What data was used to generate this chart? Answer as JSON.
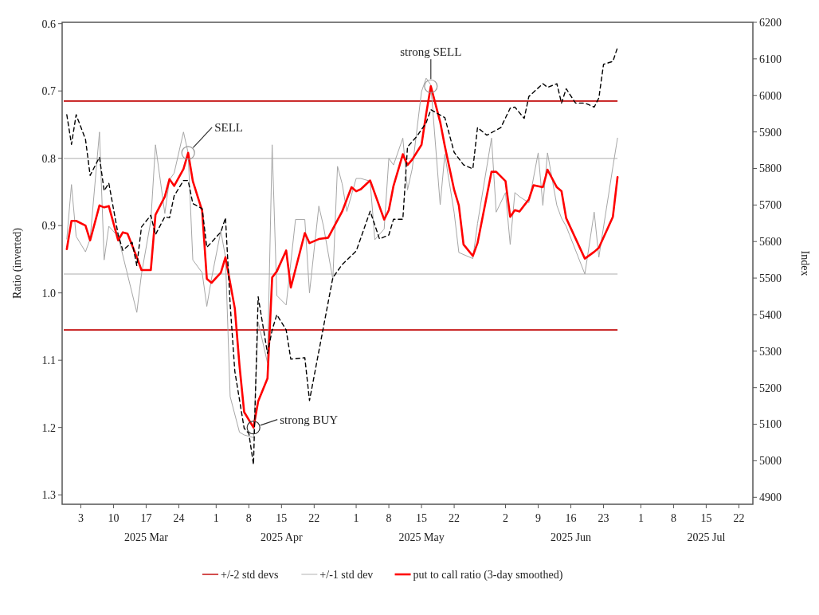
{
  "chart_data": {
    "type": "line",
    "ylabel": "Ratio (inverted)",
    "y2label": "Index",
    "xlim": [
      "2025-02-27",
      "2025-07-25"
    ],
    "xticks": [
      {
        "value": "2025-03-03",
        "label": "3"
      },
      {
        "value": "2025-03-10",
        "label": "10"
      },
      {
        "value": "2025-03-17",
        "label": "17\n2025 Mar"
      },
      {
        "value": "2025-03-24",
        "label": "24"
      },
      {
        "value": "2025-04-01",
        "label": "1"
      },
      {
        "value": "2025-04-08",
        "label": "8"
      },
      {
        "value": "2025-04-15",
        "label": "15\n2025 Apr"
      },
      {
        "value": "2025-04-22",
        "label": "22"
      },
      {
        "value": "2025-05-01",
        "label": "1"
      },
      {
        "value": "2025-05-08",
        "label": "8"
      },
      {
        "value": "2025-05-15",
        "label": "15\n2025 May"
      },
      {
        "value": "2025-05-22",
        "label": "22"
      },
      {
        "value": "2025-06-02",
        "label": "2"
      },
      {
        "value": "2025-06-09",
        "label": "9"
      },
      {
        "value": "2025-06-16",
        "label": "16\n2025 Jun"
      },
      {
        "value": "2025-06-23",
        "label": "23"
      },
      {
        "value": "2025-07-01",
        "label": "1"
      },
      {
        "value": "2025-07-08",
        "label": "8"
      },
      {
        "value": "2025-07-15",
        "label": "15\n2025 Jul"
      },
      {
        "value": "2025-07-22",
        "label": "22"
      }
    ],
    "ylim": [
      1.314,
      0.598
    ],
    "yticks": [
      0.6,
      0.7,
      0.8,
      0.9,
      {
        "value": 1,
        "label": "1.0"
      },
      1.1,
      1.2,
      1.3
    ],
    "y2lim": [
      4881,
      6200
    ],
    "y2ticks": [
      4900,
      5000,
      5100,
      5200,
      5300,
      5400,
      5500,
      5600,
      5700,
      5800,
      5900,
      6000,
      6100,
      6200
    ],
    "legend": "bottom",
    "annotations": [
      {
        "text": "SELL",
        "x": "2025-03-26",
        "y": 0.792
      },
      {
        "text": "strong BUY",
        "x": "2025-04-09",
        "y": 1.2
      },
      {
        "text": "strong SELL",
        "x": "2025-05-17",
        "y": 0.693
      }
    ],
    "ref_lines": [
      {
        "axis": "y",
        "value": 0.715,
        "label": "+/-2 std devs",
        "color": "#c00000"
      },
      {
        "axis": "y",
        "value": 1.055,
        "label": null,
        "color": "#c00000"
      },
      {
        "axis": "y",
        "value": 0.8,
        "label": "+/-1 std dev",
        "color": "#c8c8c8"
      },
      {
        "axis": "y",
        "value": 0.972,
        "label": null,
        "color": "#c8c8c8"
      }
    ],
    "series": [
      {
        "color": "#a6a6a6",
        "x": [
          "2025-02-28",
          "2025-03-01",
          "2025-03-02",
          "2025-03-04",
          "2025-03-05",
          "2025-03-07",
          "2025-03-08",
          "2025-03-09",
          "2025-03-11",
          "2025-03-15",
          "2025-03-16",
          "2025-03-18",
          "2025-03-19",
          "2025-03-21",
          "2025-03-22",
          "2025-03-23",
          "2025-03-25",
          "2025-03-26",
          "2025-03-27",
          "2025-03-29",
          "2025-03-30",
          "2025-03-31",
          "2025-04-02",
          "2025-04-03",
          "2025-04-04",
          "2025-04-06",
          "2025-04-07",
          "2025-04-09",
          "2025-04-10",
          "2025-04-12",
          "2025-04-13",
          "2025-04-14",
          "2025-04-16",
          "2025-04-18",
          "2025-04-20",
          "2025-04-21",
          "2025-04-23",
          "2025-04-24",
          "2025-04-26",
          "2025-04-27",
          "2025-04-28",
          "2025-04-29",
          "2025-05-01",
          "2025-05-02",
          "2025-05-04",
          "2025-05-05",
          "2025-05-07",
          "2025-05-08",
          "2025-05-09",
          "2025-05-11",
          "2025-05-12",
          "2025-05-13",
          "2025-05-15",
          "2025-05-16",
          "2025-05-17",
          "2025-05-19",
          "2025-05-20",
          "2025-05-22",
          "2025-05-23",
          "2025-05-26",
          "2025-05-27",
          "2025-05-30",
          "2025-05-31",
          "2025-06-02",
          "2025-06-03",
          "2025-06-04",
          "2025-06-05",
          "2025-06-07",
          "2025-06-09",
          "2025-06-10",
          "2025-06-11",
          "2025-06-13",
          "2025-06-14",
          "2025-06-15",
          "2025-06-19",
          "2025-06-21",
          "2025-06-22",
          "2025-06-25",
          "2025-06-26"
        ],
        "values": [
          0.92,
          0.839,
          0.916,
          0.939,
          0.92,
          0.761,
          0.951,
          0.901,
          0.916,
          1.029,
          0.972,
          0.893,
          0.78,
          0.882,
          0.832,
          0.822,
          0.761,
          0.792,
          0.951,
          0.97,
          1.02,
          0.979,
          0.908,
          0.947,
          1.154,
          1.207,
          1.211,
          1.215,
          1.043,
          1.104,
          0.78,
          1.004,
          1.018,
          0.891,
          0.891,
          1.0,
          0.871,
          0.901,
          0.98,
          0.812,
          0.838,
          0.879,
          0.83,
          0.83,
          0.834,
          0.921,
          0.905,
          0.8,
          0.81,
          0.77,
          0.847,
          0.816,
          0.701,
          0.681,
          0.691,
          0.869,
          0.794,
          0.881,
          0.94,
          0.949,
          0.897,
          0.77,
          0.88,
          0.851,
          0.928,
          0.851,
          0.857,
          0.866,
          0.792,
          0.87,
          0.792,
          0.87,
          0.889,
          0.901,
          0.972,
          0.88,
          0.947,
          0.813,
          0.77
        ]
      },
      {
        "name": "put to call ratio (3-day smoothed)",
        "color": "#ff0000",
        "x": [
          "2025-02-28",
          "2025-03-01",
          "2025-03-02",
          "2025-03-04",
          "2025-03-05",
          "2025-03-07",
          "2025-03-08",
          "2025-03-09",
          "2025-03-11",
          "2025-03-12",
          "2025-03-13",
          "2025-03-15",
          "2025-03-16",
          "2025-03-18",
          "2025-03-19",
          "2025-03-21",
          "2025-03-22",
          "2025-03-23",
          "2025-03-25",
          "2025-03-26",
          "2025-03-27",
          "2025-03-29",
          "2025-03-30",
          "2025-03-31",
          "2025-04-02",
          "2025-04-03",
          "2025-04-05",
          "2025-04-06",
          "2025-04-07",
          "2025-04-09",
          "2025-04-10",
          "2025-04-12",
          "2025-04-13",
          "2025-04-14",
          "2025-04-16",
          "2025-04-17",
          "2025-04-20",
          "2025-04-21",
          "2025-04-23",
          "2025-04-25",
          "2025-04-28",
          "2025-04-30",
          "2025-05-01",
          "2025-05-02",
          "2025-05-04",
          "2025-05-07",
          "2025-05-08",
          "2025-05-09",
          "2025-05-11",
          "2025-05-12",
          "2025-05-13",
          "2025-05-15",
          "2025-05-16",
          "2025-05-17",
          "2025-05-19",
          "2025-05-20",
          "2025-05-22",
          "2025-05-23",
          "2025-05-24",
          "2025-05-26",
          "2025-05-27",
          "2025-05-30",
          "2025-05-31",
          "2025-06-02",
          "2025-06-03",
          "2025-06-04",
          "2025-06-05",
          "2025-06-07",
          "2025-06-08",
          "2025-06-10",
          "2025-06-11",
          "2025-06-13",
          "2025-06-14",
          "2025-06-15",
          "2025-06-19",
          "2025-06-21",
          "2025-06-22",
          "2025-06-25",
          "2025-06-26"
        ],
        "values": [
          0.935,
          0.893,
          0.893,
          0.9,
          0.922,
          0.87,
          0.873,
          0.871,
          0.922,
          0.91,
          0.912,
          0.947,
          0.966,
          0.966,
          0.884,
          0.857,
          0.831,
          0.841,
          0.816,
          0.792,
          0.834,
          0.878,
          0.979,
          0.985,
          0.97,
          0.947,
          1.023,
          1.108,
          1.177,
          1.2,
          1.161,
          1.127,
          0.977,
          0.968,
          0.937,
          0.992,
          0.911,
          0.926,
          0.92,
          0.918,
          0.879,
          0.843,
          0.849,
          0.846,
          0.833,
          0.891,
          0.877,
          0.841,
          0.794,
          0.81,
          0.802,
          0.78,
          0.734,
          0.693,
          0.746,
          0.782,
          0.847,
          0.87,
          0.928,
          0.945,
          0.926,
          0.82,
          0.82,
          0.834,
          0.887,
          0.877,
          0.879,
          0.861,
          0.84,
          0.843,
          0.817,
          0.843,
          0.849,
          0.889,
          0.949,
          0.939,
          0.933,
          0.887,
          0.828
        ]
      },
      {
        "color": "#000000",
        "axis": "y2",
        "line_style": "dashed",
        "x": [
          "2025-02-28",
          "2025-03-01",
          "2025-03-02",
          "2025-03-04",
          "2025-03-05",
          "2025-03-07",
          "2025-03-08",
          "2025-03-09",
          "2025-03-11",
          "2025-03-12",
          "2025-03-14",
          "2025-03-15",
          "2025-03-16",
          "2025-03-18",
          "2025-03-19",
          "2025-03-21",
          "2025-03-22",
          "2025-03-23",
          "2025-03-25",
          "2025-03-26",
          "2025-03-27",
          "2025-03-29",
          "2025-03-30",
          "2025-03-31",
          "2025-04-02",
          "2025-04-03",
          "2025-04-04",
          "2025-04-05",
          "2025-04-07",
          "2025-04-08",
          "2025-04-09",
          "2025-04-10",
          "2025-04-12",
          "2025-04-13",
          "2025-04-14",
          "2025-04-16",
          "2025-04-17",
          "2025-04-20",
          "2025-04-21",
          "2025-04-26",
          "2025-04-28",
          "2025-05-01",
          "2025-05-02",
          "2025-05-04",
          "2025-05-06",
          "2025-05-08",
          "2025-05-09",
          "2025-05-11",
          "2025-05-12",
          "2025-05-14",
          "2025-05-16",
          "2025-05-17",
          "2025-05-20",
          "2025-05-22",
          "2025-05-24",
          "2025-05-26",
          "2025-05-27",
          "2025-05-29",
          "2025-05-31",
          "2025-06-01",
          "2025-06-03",
          "2025-06-04",
          "2025-06-06",
          "2025-06-07",
          "2025-06-10",
          "2025-06-11",
          "2025-06-13",
          "2025-06-14",
          "2025-06-15",
          "2025-06-17",
          "2025-06-19",
          "2025-06-21",
          "2025-06-22",
          "2025-06-23",
          "2025-06-25",
          "2025-06-26"
        ],
        "values": [
          5947,
          5866,
          5947,
          5880,
          5781,
          5831,
          5739,
          5760,
          5619,
          5576,
          5598,
          5534,
          5640,
          5672,
          5619,
          5668,
          5665,
          5725,
          5767,
          5767,
          5704,
          5690,
          5584,
          5598,
          5626,
          5665,
          5428,
          5245,
          5089,
          5075,
          4990,
          5449,
          5294,
          5358,
          5400,
          5358,
          5278,
          5282,
          5165,
          5501,
          5537,
          5574,
          5610,
          5683,
          5607,
          5618,
          5661,
          5661,
          5859,
          5888,
          5925,
          5961,
          5939,
          5844,
          5810,
          5799,
          5912,
          5891,
          5905,
          5912,
          5965,
          5968,
          5937,
          5997,
          6032,
          6022,
          6032,
          5979,
          6018,
          5979,
          5979,
          5968,
          5993,
          6085,
          6093,
          6131
        ]
      }
    ]
  }
}
